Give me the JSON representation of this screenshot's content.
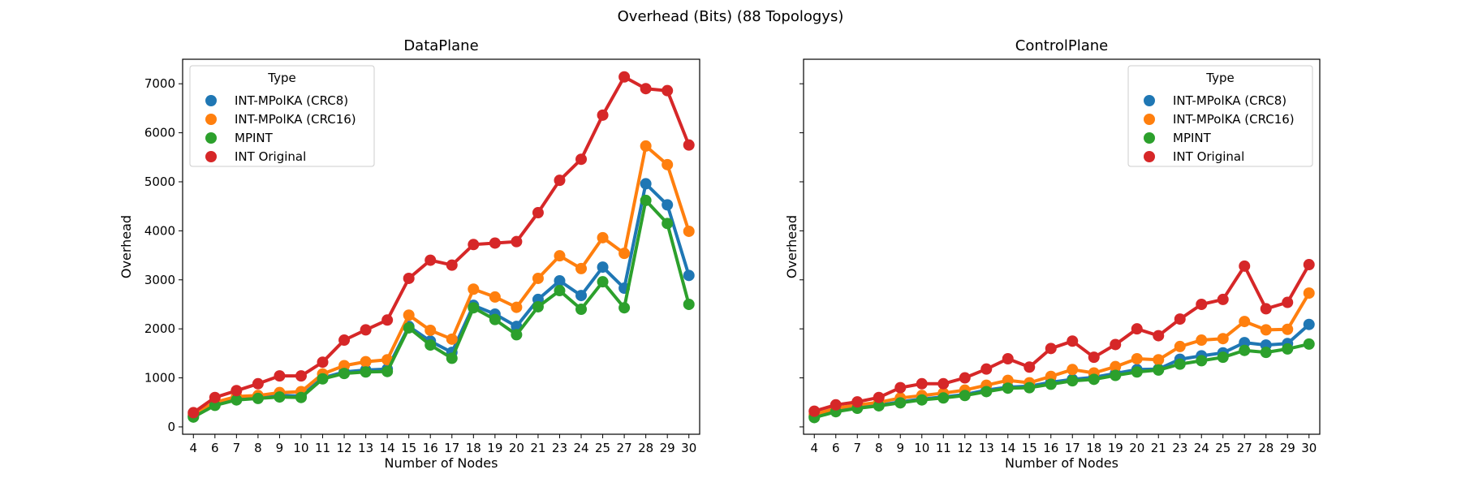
{
  "figure": {
    "suptitle": "Overhead (Bits) (88 Topologys)"
  },
  "chart_data": [
    {
      "type": "line",
      "title": "DataPlane",
      "xlabel": "Number of Nodes",
      "ylabel": "Overhead",
      "categories": [
        "4",
        "6",
        "7",
        "8",
        "9",
        "10",
        "11",
        "12",
        "13",
        "14",
        "15",
        "16",
        "17",
        "18",
        "19",
        "20",
        "21",
        "23",
        "24",
        "25",
        "27",
        "28",
        "29",
        "30"
      ],
      "ylim": [
        -150,
        7500
      ],
      "yticks": [
        0,
        1000,
        2000,
        3000,
        4000,
        5000,
        6000,
        7000
      ],
      "show_ytick_labels": true,
      "grid": false,
      "legend": {
        "title": "Type",
        "placement": "top-left"
      },
      "series": [
        {
          "name": "INT-MPolKA (CRC8)",
          "color": "#1f77b4",
          "values": [
            220,
            460,
            580,
            620,
            640,
            630,
            1000,
            1120,
            1160,
            1180,
            2050,
            1750,
            1520,
            2480,
            2300,
            2050,
            2600,
            2980,
            2680,
            3260,
            2830,
            4960,
            4530,
            3090
          ]
        },
        {
          "name": "INT-MPolKA (CRC16)",
          "color": "#ff7f0e",
          "values": [
            250,
            500,
            620,
            640,
            700,
            720,
            1080,
            1250,
            1330,
            1370,
            2280,
            1970,
            1790,
            2810,
            2650,
            2440,
            3030,
            3490,
            3230,
            3860,
            3540,
            5730,
            5350,
            3990
          ]
        },
        {
          "name": "MPINT",
          "color": "#2ca02c",
          "values": [
            200,
            440,
            550,
            580,
            610,
            600,
            980,
            1090,
            1120,
            1130,
            2020,
            1670,
            1400,
            2430,
            2190,
            1880,
            2450,
            2780,
            2400,
            2960,
            2430,
            4620,
            4150,
            2500
          ]
        },
        {
          "name": "INT Original",
          "color": "#d62728",
          "values": [
            290,
            600,
            740,
            880,
            1040,
            1040,
            1320,
            1770,
            1980,
            2180,
            3030,
            3400,
            3300,
            3720,
            3750,
            3780,
            4370,
            5030,
            5460,
            6360,
            7140,
            6900,
            6860,
            5750
          ]
        }
      ]
    },
    {
      "type": "line",
      "title": "ControlPlane",
      "xlabel": "Number of Nodes",
      "ylabel": "Overhead",
      "categories": [
        "4",
        "6",
        "7",
        "8",
        "9",
        "10",
        "11",
        "12",
        "13",
        "14",
        "15",
        "16",
        "17",
        "18",
        "19",
        "20",
        "21",
        "23",
        "24",
        "25",
        "27",
        "28",
        "29",
        "30"
      ],
      "ylim": [
        -150,
        7500
      ],
      "yticks": [
        0,
        1000,
        2000,
        3000,
        4000,
        5000,
        6000,
        7000
      ],
      "show_ytick_labels": false,
      "grid": false,
      "legend": {
        "title": "Type",
        "placement": "top-right"
      },
      "series": [
        {
          "name": "INT-MPolKA (CRC8)",
          "color": "#1f77b4",
          "values": [
            210,
            330,
            400,
            440,
            510,
            570,
            610,
            660,
            750,
            810,
            830,
            910,
            970,
            1010,
            1090,
            1170,
            1180,
            1380,
            1450,
            1510,
            1720,
            1670,
            1700,
            2090
          ]
        },
        {
          "name": "INT-MPolKA (CRC16)",
          "color": "#ff7f0e",
          "values": [
            250,
            380,
            450,
            500,
            590,
            640,
            690,
            750,
            850,
            950,
            900,
            1030,
            1170,
            1100,
            1230,
            1390,
            1370,
            1640,
            1770,
            1800,
            2150,
            1980,
            1990,
            2730
          ]
        },
        {
          "name": "MPINT",
          "color": "#2ca02c",
          "values": [
            190,
            310,
            380,
            430,
            490,
            550,
            590,
            640,
            720,
            790,
            800,
            870,
            940,
            970,
            1050,
            1120,
            1160,
            1280,
            1350,
            1420,
            1560,
            1520,
            1590,
            1690
          ]
        },
        {
          "name": "INT Original",
          "color": "#d62728",
          "values": [
            320,
            450,
            510,
            600,
            800,
            880,
            880,
            1000,
            1180,
            1390,
            1220,
            1600,
            1750,
            1420,
            1680,
            2000,
            1860,
            2200,
            2500,
            2600,
            3280,
            2410,
            2540,
            3310
          ]
        }
      ]
    }
  ]
}
